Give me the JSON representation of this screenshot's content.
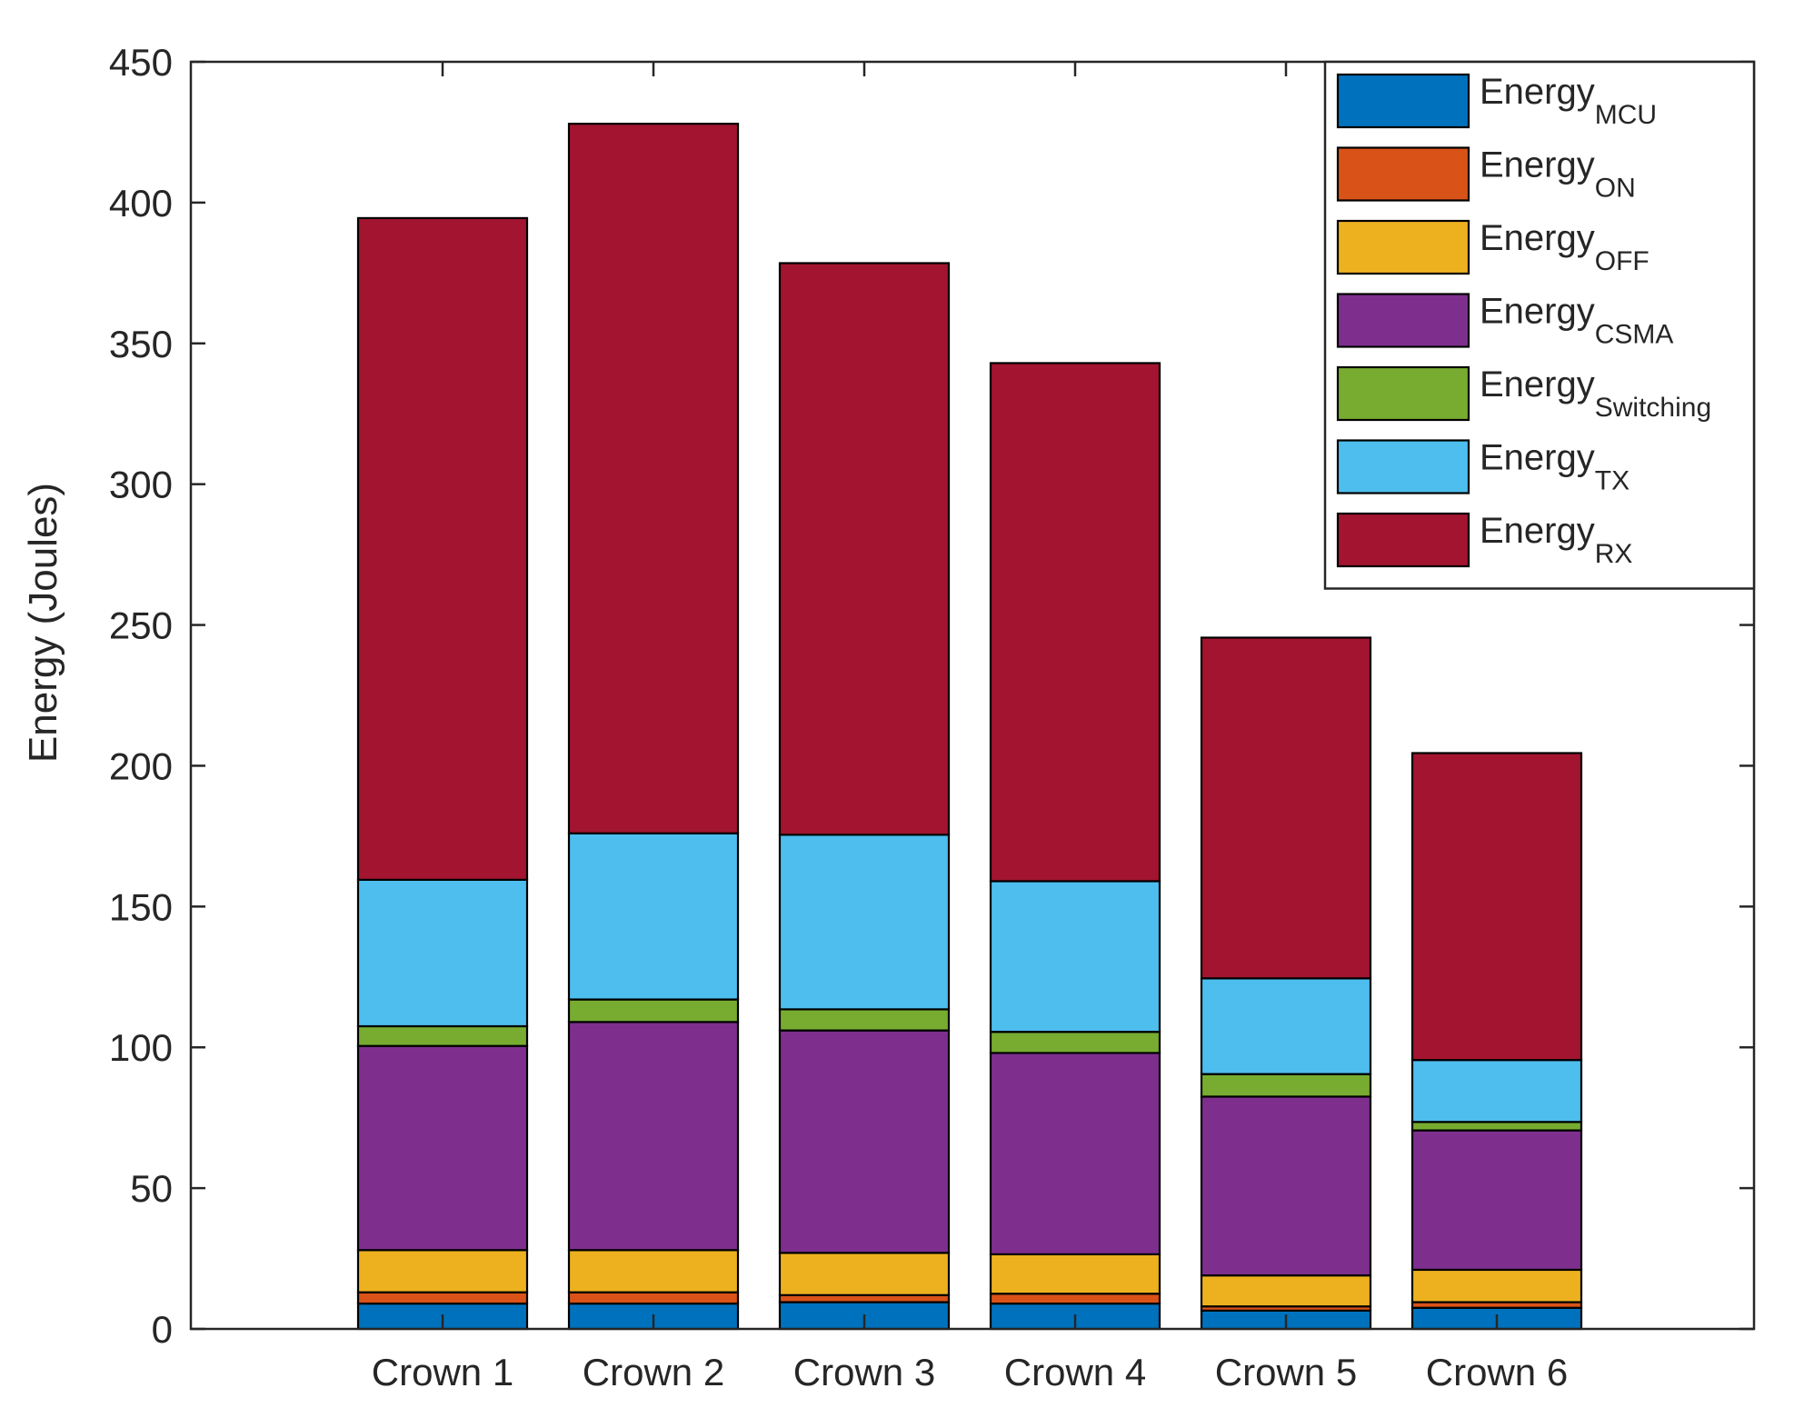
{
  "chart_data": {
    "type": "bar",
    "stacked": true,
    "categories": [
      "Crown 1",
      "Crown 2",
      "Crown 3",
      "Crown 4",
      "Crown 5",
      "Crown 6"
    ],
    "ylabel": "Energy (Joules)",
    "xlabel": "",
    "title": "",
    "ylim": [
      0,
      450
    ],
    "yticks": [
      0,
      50,
      100,
      150,
      200,
      250,
      300,
      350,
      400,
      450
    ],
    "grid": false,
    "legend_position": "top-right",
    "series": [
      {
        "name": "Energy",
        "sub": "MCU",
        "color": "#0072BD",
        "values": [
          9,
          9,
          9.5,
          9,
          6.5,
          7.5
        ]
      },
      {
        "name": "Energy",
        "sub": "ON",
        "color": "#D95319",
        "values": [
          4,
          4,
          2.5,
          3.5,
          1.5,
          2
        ]
      },
      {
        "name": "Energy",
        "sub": "OFF",
        "color": "#EDB120",
        "values": [
          15,
          15,
          15,
          14,
          11,
          11.5
        ]
      },
      {
        "name": "Energy",
        "sub": "CSMA",
        "color": "#7E2F8E",
        "values": [
          72.5,
          81,
          79,
          71.5,
          63.5,
          49.5
        ]
      },
      {
        "name": "Energy",
        "sub": "Switching",
        "color": "#77AC30",
        "values": [
          7,
          8,
          7.5,
          7.5,
          8,
          3
        ]
      },
      {
        "name": "Energy",
        "sub": "TX",
        "color": "#4DBEEE",
        "values": [
          52,
          59,
          62,
          53.5,
          34,
          22
        ]
      },
      {
        "name": "Energy",
        "sub": "RX",
        "color": "#A2142F",
        "values": [
          235,
          252,
          203,
          184,
          121,
          109
        ]
      }
    ]
  }
}
